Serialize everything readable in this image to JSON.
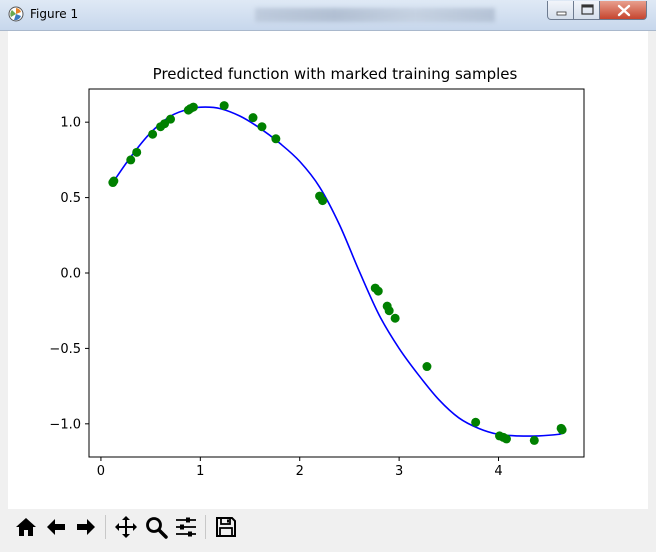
{
  "window": {
    "title": "Figure 1"
  },
  "toolbar": {
    "buttons": [
      {
        "name": "home-button",
        "icon": "home-icon"
      },
      {
        "name": "back-button",
        "icon": "arrow-left-icon"
      },
      {
        "name": "forward-button",
        "icon": "arrow-right-icon"
      },
      {
        "name": "pan-button",
        "icon": "move-icon"
      },
      {
        "name": "zoom-button",
        "icon": "magnifier-icon"
      },
      {
        "name": "configure-subplots-button",
        "icon": "sliders-icon"
      },
      {
        "name": "save-button",
        "icon": "floppy-disk-icon"
      }
    ]
  },
  "chart_data": {
    "type": "scatter",
    "title": "Predicted function with marked training samples",
    "xlabel": "",
    "ylabel": "",
    "xlim": [
      -0.12,
      4.86
    ],
    "ylim": [
      -1.22,
      1.22
    ],
    "xticks": [
      0,
      1,
      2,
      3,
      4
    ],
    "yticks": [
      -1.0,
      -0.5,
      0.0,
      0.5,
      1.0
    ],
    "xtick_labels": [
      "0",
      "1",
      "2",
      "3",
      "4"
    ],
    "ytick_labels": [
      "−1.0",
      "−0.5",
      "0.0",
      "0.5",
      "1.0"
    ],
    "grid": false,
    "legend": "none",
    "colors": {
      "line": "#0000ff",
      "points": "#008000"
    },
    "series": [
      {
        "kind": "line",
        "x": [
          0.12,
          0.3,
          0.5,
          0.7,
          0.9,
          1.05,
          1.2,
          1.4,
          1.6,
          1.8,
          2.0,
          2.2,
          2.4,
          2.6,
          2.8,
          3.0,
          3.2,
          3.4,
          3.6,
          3.8,
          4.0,
          4.2,
          4.4,
          4.6,
          4.65
        ],
        "y": [
          0.6,
          0.77,
          0.93,
          1.04,
          1.09,
          1.1,
          1.09,
          1.04,
          0.96,
          0.86,
          0.74,
          0.57,
          0.32,
          0.01,
          -0.28,
          -0.5,
          -0.68,
          -0.84,
          -0.96,
          -1.03,
          -1.07,
          -1.08,
          -1.08,
          -1.07,
          -1.06
        ]
      },
      {
        "kind": "scatter",
        "x": [
          0.12,
          0.13,
          0.3,
          0.36,
          0.52,
          0.6,
          0.64,
          0.7,
          0.88,
          0.9,
          0.93,
          1.24,
          1.53,
          1.62,
          1.76,
          2.2,
          2.23,
          2.76,
          2.79,
          2.88,
          2.9,
          2.96,
          3.28,
          3.77,
          4.01,
          4.05,
          4.08,
          4.36,
          4.63,
          4.64
        ],
        "y": [
          0.6,
          0.61,
          0.75,
          0.8,
          0.92,
          0.97,
          0.99,
          1.02,
          1.08,
          1.09,
          1.1,
          1.11,
          1.03,
          0.97,
          0.89,
          0.51,
          0.48,
          -0.1,
          -0.12,
          -0.22,
          -0.25,
          -0.3,
          -0.62,
          -0.99,
          -1.08,
          -1.09,
          -1.1,
          -1.11,
          -1.03,
          -1.04
        ]
      }
    ]
  }
}
